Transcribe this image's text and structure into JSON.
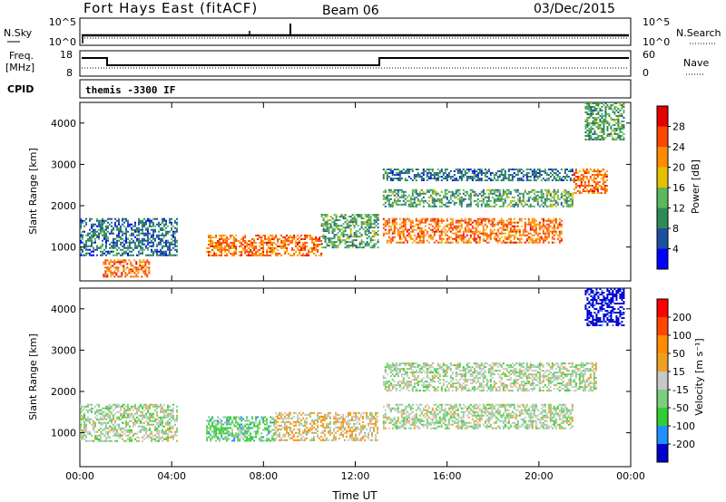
{
  "header": {
    "station": "Fort Hays East (fitACF)",
    "beam": "Beam 06",
    "date": "03/Dec/2015"
  },
  "noise_panel": {
    "left_label": "N.Sky",
    "right_label": "N.Search",
    "ticks_left": [
      "10^5",
      "10^0"
    ],
    "ticks_right": [
      "10^5",
      "10^0"
    ]
  },
  "freq_panel": {
    "left_label_1": "Freq.",
    "left_label_2": "[MHz]",
    "right_label": "Nave",
    "ticks_left": [
      "18",
      "8"
    ],
    "ticks_right": [
      "60",
      "0"
    ]
  },
  "cpid": {
    "label": "CPID",
    "value": "themis -3300 IF"
  },
  "colors": {
    "power_scale": [
      "#0000ff",
      "#1e50a0",
      "#2e8b57",
      "#5cb85c",
      "#e5c100",
      "#ff8c00",
      "#ff4500",
      "#e60000"
    ],
    "velocity_scale": [
      "#0000cc",
      "#1e90ff",
      "#32cd32",
      "#7ccd7c",
      "#c8c8c8",
      "#f0a020",
      "#ff8c00",
      "#ff4500",
      "#ff0000"
    ]
  },
  "chart_data": [
    {
      "type": "heatmap",
      "name": "power",
      "ylabel": "Slant Range [km]",
      "y_ticks": [
        "4000",
        "3000",
        "2000",
        "1000"
      ],
      "x_ticks": [
        "00:00",
        "04:00",
        "08:00",
        "12:00",
        "16:00",
        "20:00",
        "00:00"
      ],
      "ylim": [
        180,
        4500
      ],
      "colorbar": {
        "label": "Power [dB]",
        "ticks": [
          "28",
          "24",
          "20",
          "16",
          "12",
          "8",
          "4"
        ]
      },
      "regions": [
        {
          "t0": 0.0,
          "t1": 4.2,
          "r0": 800,
          "r1": 1700,
          "level": 2
        },
        {
          "t0": 1.0,
          "t1": 3.0,
          "r0": 300,
          "r1": 700,
          "level": 6
        },
        {
          "t0": 5.5,
          "t1": 10.5,
          "r0": 800,
          "r1": 1300,
          "level": 6
        },
        {
          "t0": 10.5,
          "t1": 13.0,
          "r0": 1000,
          "r1": 1800,
          "level": 3
        },
        {
          "t0": 13.2,
          "t1": 21.0,
          "r0": 1100,
          "r1": 1700,
          "level": 6
        },
        {
          "t0": 13.2,
          "t1": 21.5,
          "r0": 2000,
          "r1": 2400,
          "level": 3
        },
        {
          "t0": 13.2,
          "t1": 21.5,
          "r0": 2600,
          "r1": 2900,
          "level": 2
        },
        {
          "t0": 21.5,
          "t1": 23.0,
          "r0": 2300,
          "r1": 2900,
          "level": 6
        },
        {
          "t0": 22.0,
          "t1": 23.7,
          "r0": 3600,
          "r1": 4500,
          "level": 3
        }
      ]
    },
    {
      "type": "heatmap",
      "name": "velocity",
      "ylabel": "Slant Range [km]",
      "xlabel": "Time UT",
      "y_ticks": [
        "4000",
        "3000",
        "2000",
        "1000"
      ],
      "x_ticks": [
        "00:00",
        "04:00",
        "08:00",
        "12:00",
        "16:00",
        "20:00",
        "00:00"
      ],
      "ylim": [
        180,
        4500
      ],
      "colorbar": {
        "label": "Velocity [m s⁻¹]",
        "ticks": [
          "200",
          "100",
          "50",
          "15",
          "-15",
          "-50",
          "-100",
          "-200"
        ]
      },
      "regions": [
        {
          "t0": 0.0,
          "t1": 4.2,
          "r0": 800,
          "r1": 1700,
          "level": 4
        },
        {
          "t0": 5.5,
          "t1": 8.5,
          "r0": 800,
          "r1": 1400,
          "level": 3
        },
        {
          "t0": 8.5,
          "t1": 13.0,
          "r0": 800,
          "r1": 1500,
          "level": 5
        },
        {
          "t0": 13.2,
          "t1": 21.5,
          "r0": 1100,
          "r1": 1700,
          "level": 4
        },
        {
          "t0": 13.2,
          "t1": 22.5,
          "r0": 2000,
          "r1": 2700,
          "level": 4
        },
        {
          "t0": 22.0,
          "t1": 23.7,
          "r0": 3600,
          "r1": 4500,
          "level": 0
        }
      ]
    }
  ]
}
